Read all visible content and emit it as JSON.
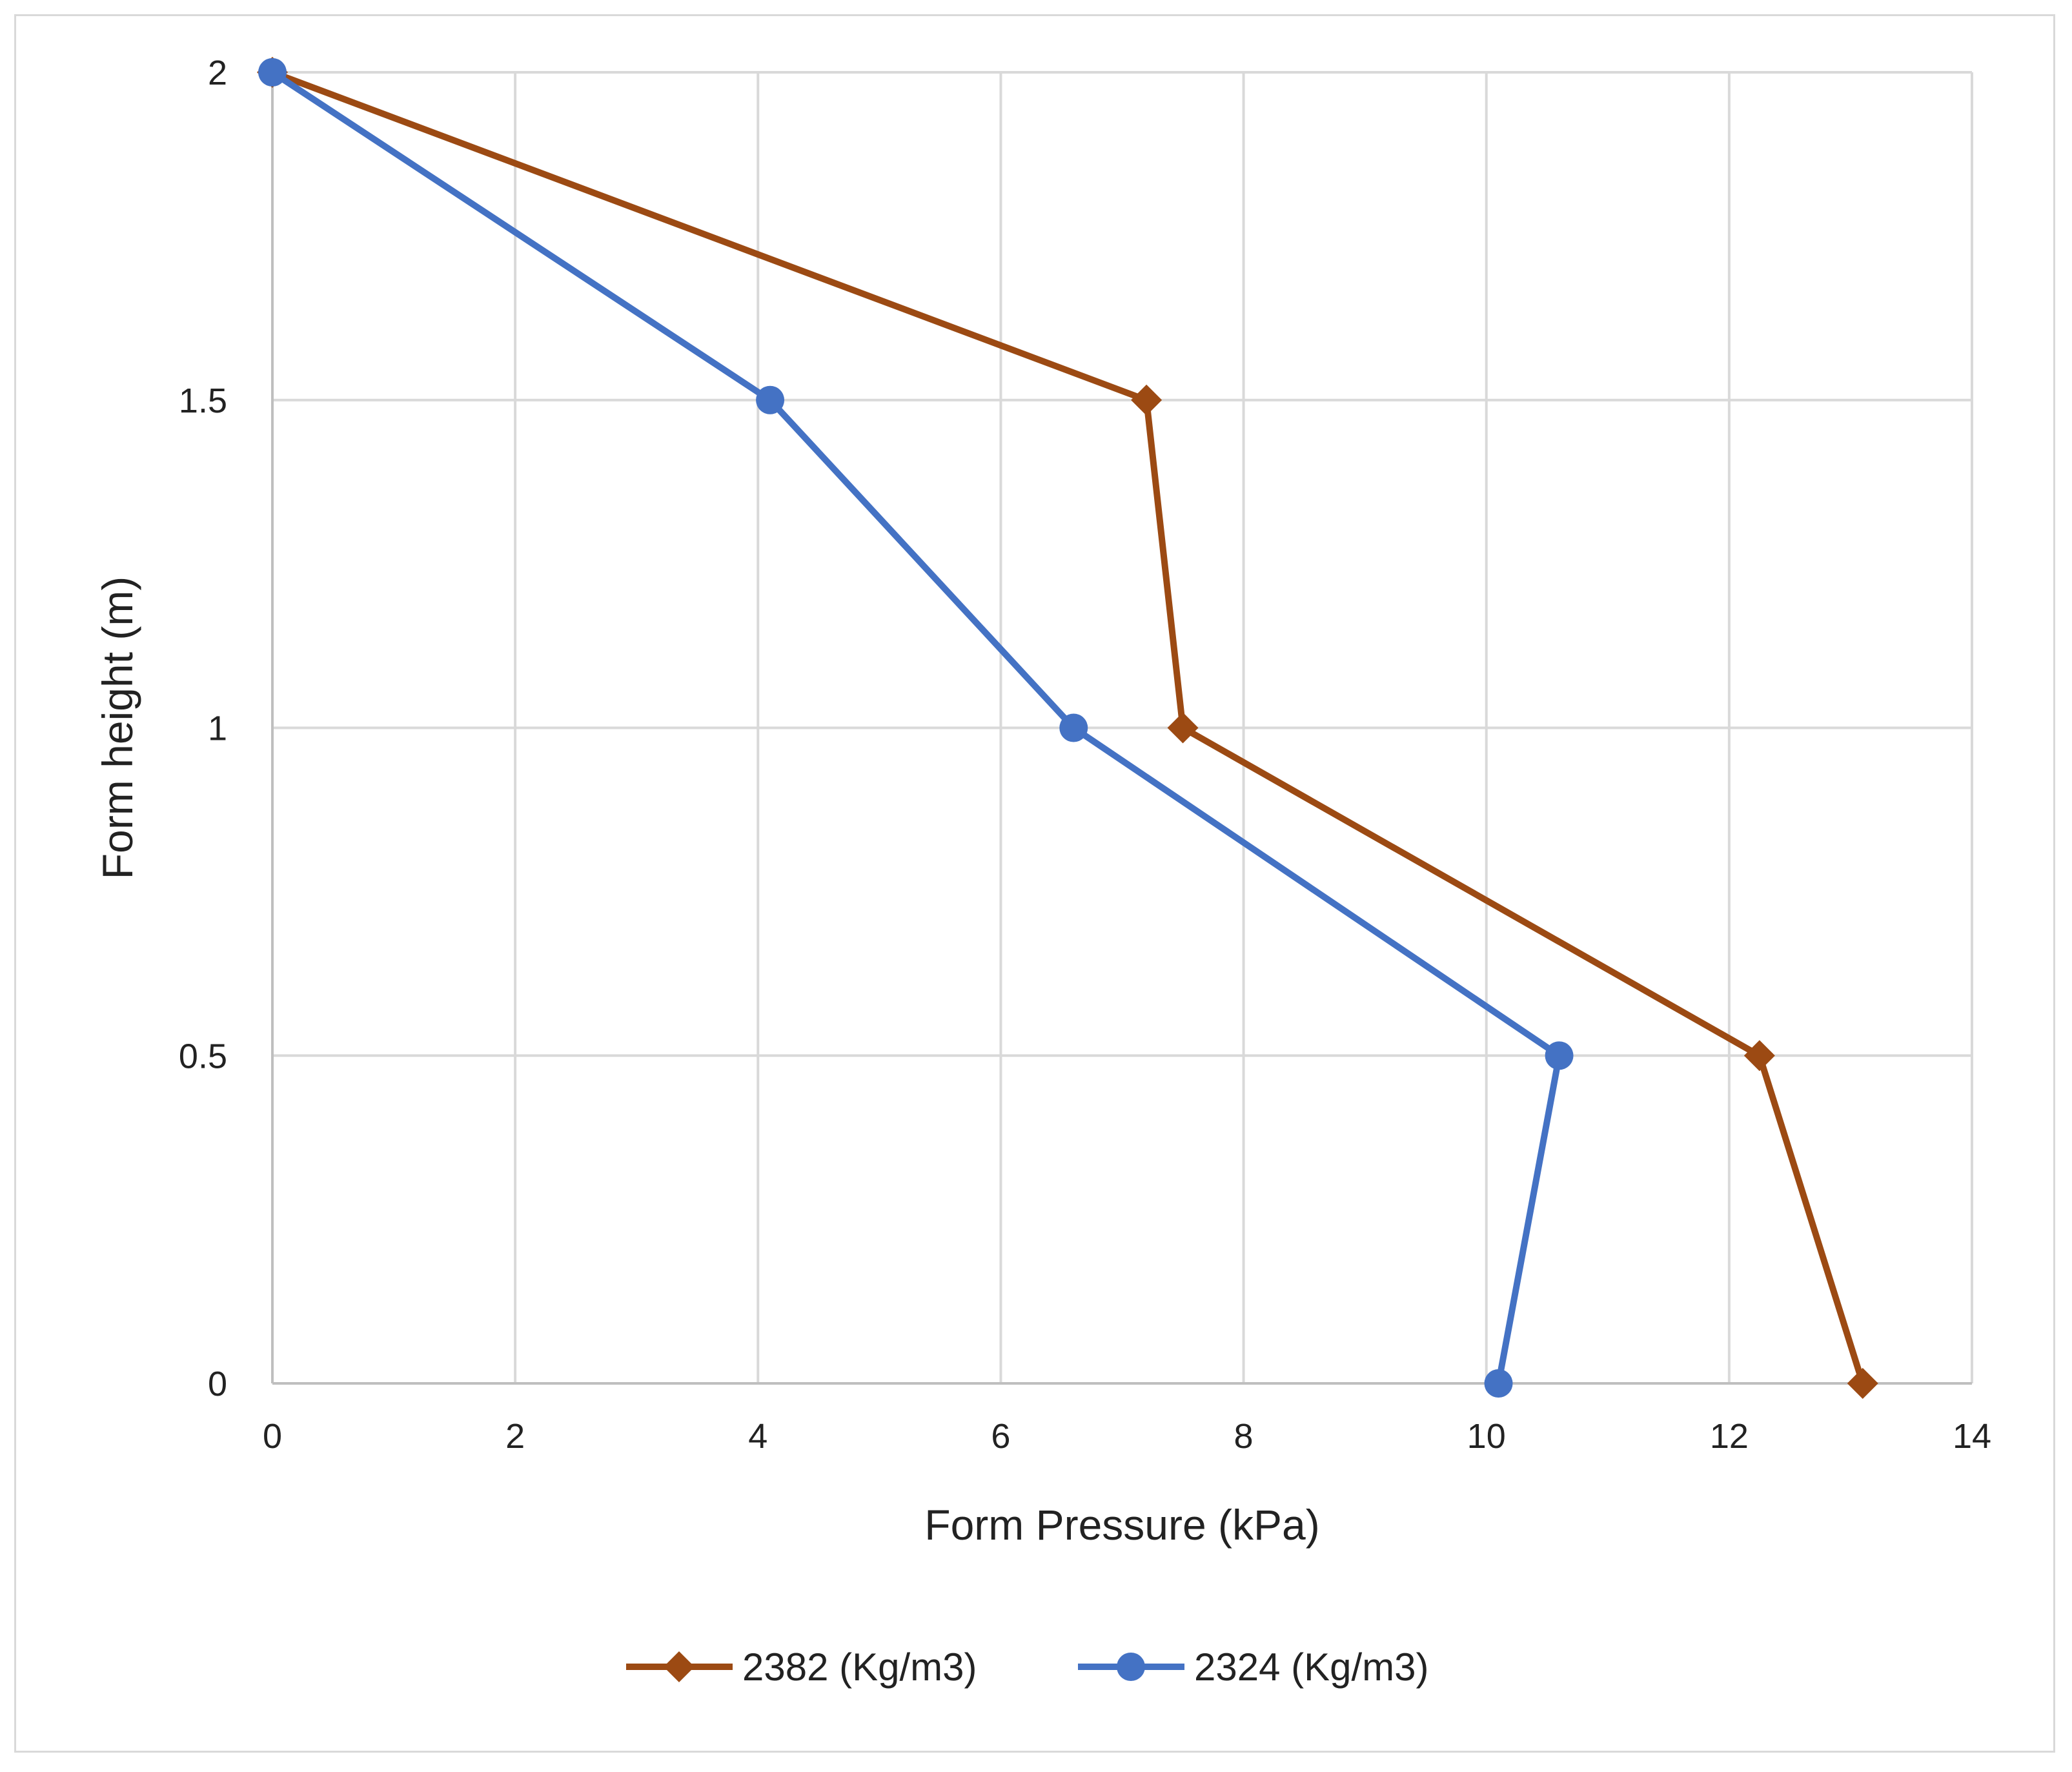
{
  "chart_data": {
    "type": "line",
    "title": "",
    "xlabel": "Form Pressure (kPa)",
    "ylabel": "Form height (m)",
    "xlim": [
      0,
      14
    ],
    "ylim": [
      0,
      2
    ],
    "xticks": [
      0,
      2,
      4,
      6,
      8,
      10,
      12,
      14
    ],
    "yticks": [
      0,
      0.5,
      1,
      1.5,
      2
    ],
    "xtick_labels": [
      "0",
      "2",
      "4",
      "6",
      "8",
      "10",
      "12",
      "14"
    ],
    "ytick_labels": [
      "0",
      "0.5",
      "1",
      "1.5",
      "2"
    ],
    "grid": true,
    "legend_position": "bottom",
    "series": [
      {
        "name": "2382 (Kg/m3)",
        "marker": "diamond",
        "color": "#9C4A13",
        "points": [
          [
            0,
            2
          ],
          [
            7.2,
            1.5
          ],
          [
            7.5,
            1
          ],
          [
            12.25,
            0.5
          ],
          [
            13.1,
            0
          ]
        ]
      },
      {
        "name": "2324 (Kg/m3)",
        "marker": "circle",
        "color": "#4472C4",
        "points": [
          [
            0,
            2
          ],
          [
            4.1,
            1.5
          ],
          [
            6.6,
            1
          ],
          [
            10.6,
            0.5
          ],
          [
            10.1,
            0
          ]
        ]
      }
    ]
  }
}
